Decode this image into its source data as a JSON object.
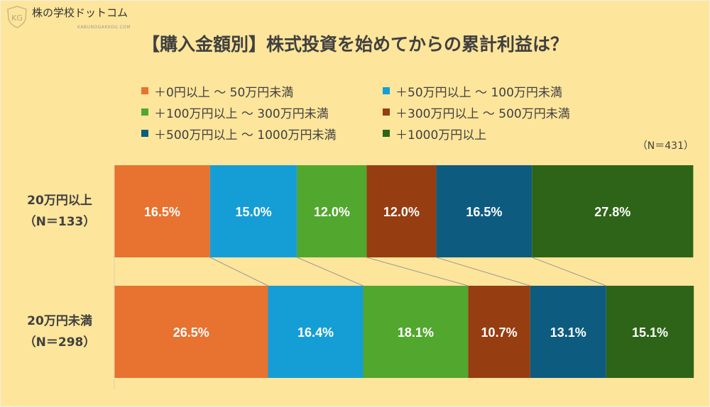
{
  "brand": {
    "name": "株の学校ドットコム",
    "sub": "KABUNOGAKKOU.COM",
    "mark": "KG"
  },
  "colors": [
    "#E8722F",
    "#159ED6",
    "#52A72E",
    "#963D12",
    "#0E5B80",
    "#2E6418"
  ],
  "chart_data": {
    "type": "bar",
    "orientation": "horizontal-stacked-100",
    "title": "【購入金額別】株式投資を始めてからの累計利益は？",
    "note": "（N＝431）",
    "categories": [
      {
        "label": "20万円以上",
        "n": "（N＝133）"
      },
      {
        "label": "20万円未満",
        "n": "（N＝298）"
      }
    ],
    "legend_position": "top",
    "xlim": [
      0,
      100
    ],
    "series": [
      {
        "name": "＋0円以上 〜 50万円未満",
        "values": [
          16.5,
          26.5
        ]
      },
      {
        "name": "＋50万円以上 〜 100万円未満",
        "values": [
          15.0,
          16.4
        ]
      },
      {
        "name": "＋100万円以上 〜 300万円未満",
        "values": [
          12.0,
          18.1
        ]
      },
      {
        "name": "＋300万円以上 〜 500万円未満",
        "values": [
          12.0,
          10.7
        ]
      },
      {
        "name": "＋500万円以上 〜 1000万円未満",
        "values": [
          16.5,
          13.1
        ]
      },
      {
        "name": "＋1000万円以上",
        "values": [
          27.8,
          15.1
        ]
      }
    ],
    "data_labels": [
      [
        "16.5%",
        "15.0%",
        "12.0%",
        "12.0%",
        "16.5%",
        "27.8%"
      ],
      [
        "26.5%",
        "16.4%",
        "18.1%",
        "10.7%",
        "13.1%",
        "15.1%"
      ]
    ]
  }
}
